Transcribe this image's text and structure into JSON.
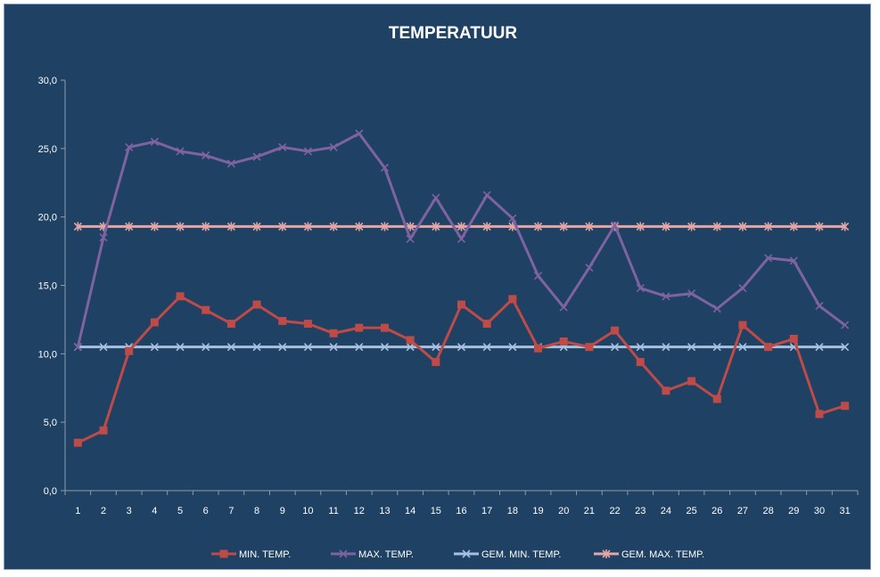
{
  "chart_data": {
    "type": "line",
    "title": "TEMPERATUUR",
    "xlabel": "",
    "ylabel": "",
    "ylim": [
      0,
      30
    ],
    "yticks": [
      "0,0",
      "5,0",
      "10,0",
      "15,0",
      "20,0",
      "25,0",
      "30,0"
    ],
    "ytick_values": [
      0,
      5,
      10,
      15,
      20,
      25,
      30
    ],
    "categories": [
      "1",
      "2",
      "3",
      "4",
      "5",
      "6",
      "7",
      "8",
      "9",
      "10",
      "11",
      "12",
      "13",
      "14",
      "15",
      "16",
      "17",
      "18",
      "19",
      "20",
      "21",
      "22",
      "23",
      "24",
      "25",
      "26",
      "27",
      "28",
      "29",
      "30",
      "31"
    ],
    "grid": false,
    "legend_position": "bottom",
    "series": [
      {
        "name": "MIN. TEMP.",
        "color": "#be4b48",
        "marker": "square",
        "values": [
          3.5,
          4.4,
          10.2,
          12.3,
          14.2,
          13.2,
          12.2,
          13.6,
          12.4,
          12.2,
          11.5,
          11.9,
          11.9,
          11.0,
          9.4,
          13.6,
          12.2,
          14.0,
          10.4,
          10.9,
          10.5,
          11.7,
          9.4,
          7.3,
          8.0,
          6.7,
          12.1,
          10.5,
          11.1,
          5.6,
          6.2
        ]
      },
      {
        "name": "MAX. TEMP.",
        "color": "#7f63a1",
        "marker": "x",
        "values": [
          10.5,
          18.5,
          25.1,
          25.5,
          24.8,
          24.5,
          23.9,
          24.4,
          25.1,
          24.8,
          25.1,
          26.1,
          23.6,
          18.4,
          21.4,
          18.4,
          21.6,
          19.9,
          15.7,
          13.4,
          16.3,
          19.4,
          14.8,
          14.2,
          14.4,
          13.3,
          14.8,
          17.0,
          16.8,
          13.5,
          12.1
        ]
      },
      {
        "name": "GEM. MIN. TEMP.",
        "color": "#a8c0e0",
        "marker": "x",
        "values": [
          10.5,
          10.5,
          10.5,
          10.5,
          10.5,
          10.5,
          10.5,
          10.5,
          10.5,
          10.5,
          10.5,
          10.5,
          10.5,
          10.5,
          10.5,
          10.5,
          10.5,
          10.5,
          10.5,
          10.5,
          10.5,
          10.5,
          10.5,
          10.5,
          10.5,
          10.5,
          10.5,
          10.5,
          10.5,
          10.5,
          10.5
        ]
      },
      {
        "name": "GEM. MAX. TEMP.",
        "color": "#e4a6a4",
        "marker": "asterisk",
        "values": [
          19.3,
          19.3,
          19.3,
          19.3,
          19.3,
          19.3,
          19.3,
          19.3,
          19.3,
          19.3,
          19.3,
          19.3,
          19.3,
          19.3,
          19.3,
          19.3,
          19.3,
          19.3,
          19.3,
          19.3,
          19.3,
          19.3,
          19.3,
          19.3,
          19.3,
          19.3,
          19.3,
          19.3,
          19.3,
          19.3,
          19.3
        ]
      }
    ]
  }
}
